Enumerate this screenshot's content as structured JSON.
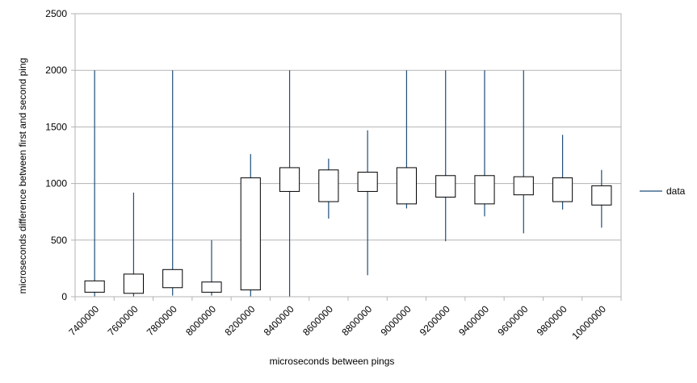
{
  "chart_data": {
    "type": "box",
    "title": "",
    "xlabel": "microseconds between pings",
    "ylabel": "microseconds difference between first and second ping",
    "ylim": [
      0,
      2500
    ],
    "yticks": [
      0,
      500,
      1000,
      1500,
      2000,
      2500
    ],
    "grid": "horizontal",
    "legend_position": "right",
    "series": [
      {
        "name": "data",
        "color": "#1f4e79",
        "categories": [
          "7400000",
          "7600000",
          "7800000",
          "8000000",
          "8200000",
          "8400000",
          "8600000",
          "8800000",
          "9000000",
          "9200000",
          "9400000",
          "9600000",
          "9800000",
          "10000000"
        ],
        "whisker_low": [
          0,
          0,
          10,
          10,
          0,
          0,
          690,
          190,
          780,
          490,
          710,
          560,
          770,
          610
        ],
        "box_low": [
          40,
          30,
          80,
          40,
          60,
          930,
          840,
          930,
          820,
          880,
          820,
          900,
          840,
          810
        ],
        "box_high": [
          140,
          200,
          240,
          130,
          1050,
          1140,
          1120,
          1100,
          1140,
          1070,
          1070,
          1060,
          1050,
          980
        ],
        "whisker_high": [
          2000,
          920,
          2000,
          500,
          1260,
          2000,
          1220,
          1470,
          2000,
          2000,
          2000,
          2000,
          1430,
          1120
        ]
      }
    ]
  }
}
